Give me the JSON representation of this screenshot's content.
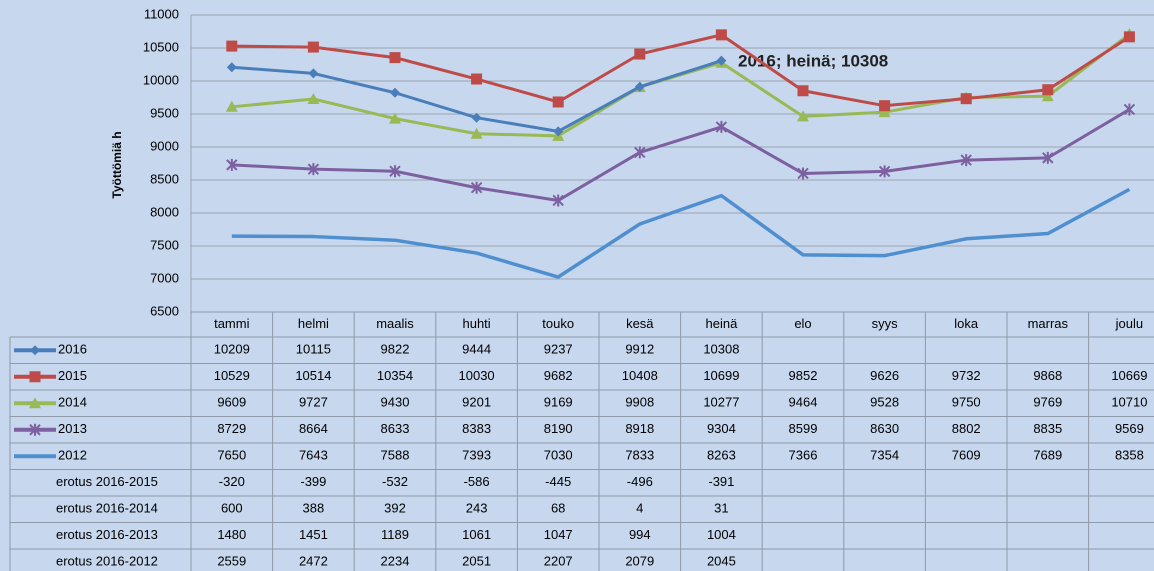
{
  "chart_data": {
    "type": "line",
    "annotation": "2016; heinä; 10308",
    "y_axis_label": "Työttömiä h",
    "categories": [
      "tammi",
      "helmi",
      "maalis",
      "huhti",
      "touko",
      "kesä",
      "heinä",
      "elo",
      "syys",
      "loka",
      "marras",
      "joulu"
    ],
    "ylim": [
      6500,
      11000
    ],
    "yticks": [
      6500,
      7000,
      7500,
      8000,
      8500,
      9000,
      9500,
      10000,
      10500,
      11000
    ],
    "grid": true,
    "series": [
      {
        "name": "2016",
        "color": "#4a7ebb",
        "marker": "diamond",
        "values": [
          10209,
          10115,
          9822,
          9444,
          9237,
          9912,
          10308,
          null,
          null,
          null,
          null,
          null
        ]
      },
      {
        "name": "2015",
        "color": "#be4b48",
        "marker": "square",
        "values": [
          10529,
          10514,
          10354,
          10030,
          9682,
          10408,
          10699,
          9852,
          9626,
          9732,
          9868,
          10669
        ]
      },
      {
        "name": "2014",
        "color": "#98b954",
        "marker": "triangle",
        "values": [
          9609,
          9727,
          9430,
          9201,
          9169,
          9908,
          10277,
          9464,
          9528,
          9750,
          9769,
          10710
        ]
      },
      {
        "name": "2013",
        "color": "#7d60a0",
        "marker": "x",
        "values": [
          8729,
          8664,
          8633,
          8383,
          8190,
          8918,
          9304,
          8599,
          8630,
          8802,
          8835,
          9569
        ]
      },
      {
        "name": "2012",
        "color": "#4f8fd0",
        "marker": null,
        "values": [
          7650,
          7643,
          7588,
          7393,
          7030,
          7833,
          8263,
          7366,
          7354,
          7609,
          7689,
          8358
        ]
      }
    ],
    "table_extra_rows": [
      {
        "name": "erotus 2016-2015",
        "values": [
          -320,
          -399,
          -532,
          -586,
          -445,
          -496,
          -391,
          null,
          null,
          null,
          null,
          null
        ]
      },
      {
        "name": "erotus 2016-2014",
        "values": [
          600,
          388,
          392,
          243,
          68,
          4,
          31,
          null,
          null,
          null,
          null,
          null
        ]
      },
      {
        "name": "erotus 2016-2013",
        "values": [
          1480,
          1451,
          1189,
          1061,
          1047,
          994,
          1004,
          null,
          null,
          null,
          null,
          null
        ]
      },
      {
        "name": "erotus 2016-2012",
        "values": [
          2559,
          2472,
          2234,
          2051,
          2207,
          2079,
          2045,
          null,
          null,
          null,
          null,
          null
        ]
      }
    ]
  }
}
